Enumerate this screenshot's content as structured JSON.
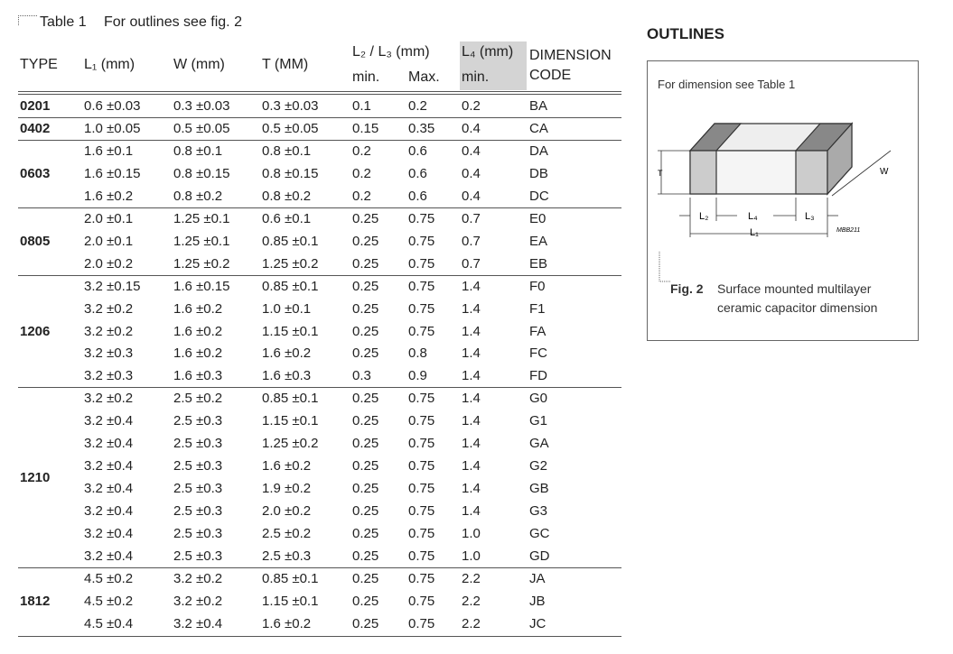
{
  "table": {
    "caption": {
      "label": "Table 1",
      "text": "For outlines see fig. 2"
    },
    "headers": {
      "type": "TYPE",
      "l1": "L₁ (mm)",
      "w": "W (mm)",
      "t": "T (MM)",
      "l23": "L₂ / L₃ (mm)",
      "l23_min": "min.",
      "l23_max": "Max.",
      "l4": "L₄ (mm)",
      "l4_min": "min.",
      "code_1": "DIMENSION",
      "code_2": "CODE"
    },
    "groups": [
      {
        "type": "0201",
        "rows": [
          [
            "0.6 ±0.03",
            "0.3 ±0.03",
            "0.3 ±0.03",
            "0.1",
            "0.2",
            "0.2",
            "BA"
          ]
        ]
      },
      {
        "type": "0402",
        "rows": [
          [
            "1.0 ±0.05",
            "0.5 ±0.05",
            "0.5 ±0.05",
            "0.15",
            "0.35",
            "0.4",
            "CA"
          ]
        ]
      },
      {
        "type": "0603",
        "rows": [
          [
            "1.6 ±0.1",
            "0.8 ±0.1",
            "0.8 ±0.1",
            "0.2",
            "0.6",
            "0.4",
            "DA"
          ],
          [
            "1.6 ±0.15",
            "0.8 ±0.15",
            "0.8 ±0.15",
            "0.2",
            "0.6",
            "0.4",
            "DB"
          ],
          [
            "1.6 ±0.2",
            "0.8 ±0.2",
            "0.8 ±0.2",
            "0.2",
            "0.6",
            "0.4",
            "DC"
          ]
        ]
      },
      {
        "type": "0805",
        "rows": [
          [
            "2.0 ±0.1",
            "1.25 ±0.1",
            "0.6 ±0.1",
            "0.25",
            "0.75",
            "0.7",
            "E0"
          ],
          [
            "2.0 ±0.1",
            "1.25 ±0.1",
            "0.85 ±0.1",
            "0.25",
            "0.75",
            "0.7",
            "EA"
          ],
          [
            "2.0 ±0.2",
            "1.25 ±0.2",
            "1.25 ±0.2",
            "0.25",
            "0.75",
            "0.7",
            "EB"
          ]
        ]
      },
      {
        "type": "1206",
        "rows": [
          [
            "3.2 ±0.15",
            "1.6 ±0.15",
            "0.85 ±0.1",
            "0.25",
            "0.75",
            "1.4",
            "F0"
          ],
          [
            "3.2 ±0.2",
            "1.6 ±0.2",
            "1.0 ±0.1",
            "0.25",
            "0.75",
            "1.4",
            "F1"
          ],
          [
            "3.2 ±0.2",
            "1.6 ±0.2",
            "1.15 ±0.1",
            "0.25",
            "0.75",
            "1.4",
            "FA"
          ],
          [
            "3.2 ±0.3",
            "1.6 ±0.2",
            "1.6 ±0.2",
            "0.25",
            "0.8",
            "1.4",
            "FC"
          ],
          [
            "3.2 ±0.3",
            "1.6 ±0.3",
            "1.6 ±0.3",
            "0.3",
            "0.9",
            "1.4",
            "FD"
          ]
        ]
      },
      {
        "type": "1210",
        "rows": [
          [
            "3.2 ±0.2",
            "2.5 ±0.2",
            "0.85 ±0.1",
            "0.25",
            "0.75",
            "1.4",
            "G0"
          ],
          [
            "3.2 ±0.4",
            "2.5 ±0.3",
            "1.15 ±0.1",
            "0.25",
            "0.75",
            "1.4",
            "G1"
          ],
          [
            "3.2 ±0.4",
            "2.5 ±0.3",
            "1.25 ±0.2",
            "0.25",
            "0.75",
            "1.4",
            "GA"
          ],
          [
            "3.2 ±0.4",
            "2.5 ±0.3",
            "1.6 ±0.2",
            "0.25",
            "0.75",
            "1.4",
            "G2"
          ],
          [
            "3.2 ±0.4",
            "2.5 ±0.3",
            "1.9 ±0.2",
            "0.25",
            "0.75",
            "1.4",
            "GB"
          ],
          [
            "3.2 ±0.4",
            "2.5 ±0.3",
            "2.0 ±0.2",
            "0.25",
            "0.75",
            "1.4",
            "G3"
          ],
          [
            "3.2 ±0.4",
            "2.5 ±0.3",
            "2.5 ±0.2",
            "0.25",
            "0.75",
            "1.0",
            "GC"
          ],
          [
            "3.2 ±0.4",
            "2.5 ±0.3",
            "2.5 ±0.3",
            "0.25",
            "0.75",
            "1.0",
            "GD"
          ]
        ]
      },
      {
        "type": "1812",
        "rows": [
          [
            "4.5 ±0.2",
            "3.2 ±0.2",
            "0.85 ±0.1",
            "0.25",
            "0.75",
            "2.2",
            "JA"
          ],
          [
            "4.5 ±0.2",
            "3.2 ±0.2",
            "1.15 ±0.1",
            "0.25",
            "0.75",
            "2.2",
            "JB"
          ],
          [
            "4.5 ±0.4",
            "3.2 ±0.4",
            "1.6 ±0.2",
            "0.25",
            "0.75",
            "2.2",
            "JC"
          ]
        ]
      }
    ]
  },
  "outlines": {
    "title": "OUTLINES",
    "note": "For dimension see Table 1",
    "dims": {
      "t": "T",
      "w": "W",
      "l2": "L₂",
      "l4": "L₄",
      "l3": "L₃",
      "l1": "L₁",
      "ref": "MBB211"
    },
    "caption": {
      "label": "Fig. 2",
      "text_1": "Surface mounted multilayer",
      "text_2": "ceramic capacitor dimension"
    }
  }
}
